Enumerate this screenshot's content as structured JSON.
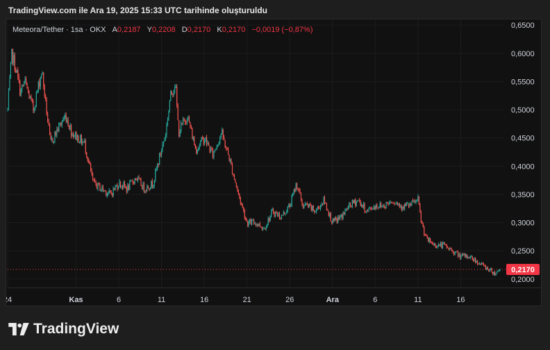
{
  "header": {
    "caption": "TradingView.com ile Ara 19, 2025 15:33 UTC tarihinde oluşturuldu"
  },
  "legend": {
    "symbol": "Meteora/Tether · 1sa · OKX",
    "open_label": "A",
    "open_value": "0,2187",
    "high_label": "Y",
    "high_value": "0,2208",
    "low_label": "D",
    "low_value": "0,2170",
    "close_label": "K",
    "close_value": "0,2170",
    "change": "−0,0019 (−0,87%)"
  },
  "price_tag": "0,2170",
  "brand": {
    "name": "TradingView"
  },
  "colors": {
    "up": "#26a69a",
    "down": "#ef5350",
    "price_tag": "#f23645",
    "grid": "#1c1c1c",
    "axis_text": "#d1d4dc"
  },
  "chart_data": {
    "type": "candlestick",
    "pair": "Meteora/Tether",
    "interval": "1sa",
    "exchange": "OKX",
    "ylim": [
      0.185,
      0.66
    ],
    "y_ticks": [
      {
        "value": 0.65,
        "label": "0,6500"
      },
      {
        "value": 0.6,
        "label": "0,6000"
      },
      {
        "value": 0.55,
        "label": "0,5500"
      },
      {
        "value": 0.5,
        "label": "0,5000"
      },
      {
        "value": 0.45,
        "label": "0,4500"
      },
      {
        "value": 0.4,
        "label": "0,4000"
      },
      {
        "value": 0.35,
        "label": "0,3500"
      },
      {
        "value": 0.3,
        "label": "0,3000"
      },
      {
        "value": 0.25,
        "label": "0,2500"
      },
      {
        "value": 0.2,
        "label": "0,2000"
      }
    ],
    "x_ticks": [
      "24",
      "Kas",
      "6",
      "11",
      "16",
      "21",
      "26",
      "Ara",
      "6",
      "11",
      "16"
    ],
    "x_tick_days": [
      0,
      8,
      13,
      18,
      23,
      28,
      33,
      38,
      43,
      48,
      53
    ],
    "last_price": 0.217,
    "price_path_days": [
      0,
      0.5,
      1,
      1.5,
      2,
      3,
      4,
      5,
      6,
      6.8,
      7.5,
      9,
      10,
      11,
      12,
      13,
      14,
      15,
      16,
      17,
      18,
      18.5,
      19,
      19.6,
      20,
      21,
      22,
      23,
      24,
      25,
      26,
      27,
      28,
      29,
      30,
      31,
      32,
      33,
      33.8,
      34.5,
      35,
      36,
      37,
      38,
      39,
      40,
      41,
      42,
      43,
      44,
      45,
      46,
      47,
      48,
      48.4,
      49,
      50,
      51,
      52,
      53,
      54,
      55,
      56,
      57,
      57.6
    ],
    "price_path_values": [
      0.5,
      0.6,
      0.57,
      0.53,
      0.55,
      0.5,
      0.57,
      0.44,
      0.47,
      0.49,
      0.46,
      0.44,
      0.37,
      0.36,
      0.35,
      0.37,
      0.36,
      0.38,
      0.36,
      0.37,
      0.43,
      0.46,
      0.52,
      0.55,
      0.46,
      0.49,
      0.43,
      0.45,
      0.42,
      0.46,
      0.41,
      0.35,
      0.3,
      0.3,
      0.29,
      0.32,
      0.31,
      0.33,
      0.37,
      0.33,
      0.33,
      0.32,
      0.34,
      0.3,
      0.31,
      0.33,
      0.34,
      0.32,
      0.33,
      0.33,
      0.34,
      0.33,
      0.33,
      0.34,
      0.3,
      0.27,
      0.26,
      0.26,
      0.25,
      0.24,
      0.24,
      0.23,
      0.22,
      0.21,
      0.217
    ]
  }
}
